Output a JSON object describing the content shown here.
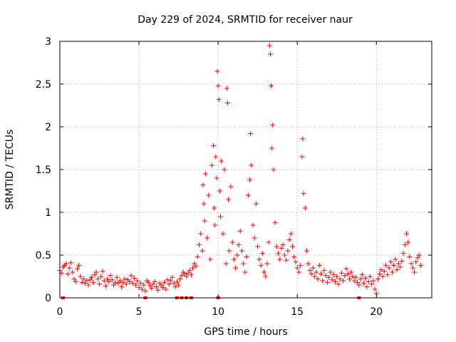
{
  "chart_data": {
    "type": "scatter",
    "title": "Day 229 of 2024, SRMTID for receiver naur",
    "xlabel": "GPS time / hours",
    "ylabel": "SRMTID / TECUs",
    "xlim": [
      0,
      23.5
    ],
    "ylim": [
      0,
      3
    ],
    "xticks": [
      0,
      5,
      10,
      15,
      20
    ],
    "xtick_labels": [
      "0",
      "5",
      "10",
      "15",
      "20"
    ],
    "yticks": [
      0,
      0.5,
      1,
      1.5,
      2,
      2.5,
      3
    ],
    "ytick_labels": [
      "0",
      "0.5",
      "1",
      "1.5",
      "2",
      "2.5",
      "3"
    ],
    "grid": true,
    "marker": "+",
    "series_color": "#ff0000",
    "points": [
      [
        0.0,
        0.32
      ],
      [
        0.1,
        0.29
      ],
      [
        0.2,
        0.36
      ],
      [
        0.3,
        0.38
      ],
      [
        0.4,
        0.4
      ],
      [
        0.5,
        0.28
      ],
      [
        0.6,
        0.35
      ],
      [
        0.7,
        0.41
      ],
      [
        0.8,
        0.3
      ],
      [
        0.9,
        0.22
      ],
      [
        1.0,
        0.19
      ],
      [
        1.1,
        0.34
      ],
      [
        1.2,
        0.38
      ],
      [
        1.3,
        0.25
      ],
      [
        1.4,
        0.18
      ],
      [
        1.5,
        0.22
      ],
      [
        1.6,
        0.17
      ],
      [
        1.7,
        0.2
      ],
      [
        1.8,
        0.15
      ],
      [
        1.9,
        0.21
      ],
      [
        2.0,
        0.24
      ],
      [
        2.1,
        0.18
      ],
      [
        2.2,
        0.27
      ],
      [
        2.3,
        0.3
      ],
      [
        2.4,
        0.22
      ],
      [
        2.5,
        0.16
      ],
      [
        2.6,
        0.25
      ],
      [
        2.7,
        0.31
      ],
      [
        2.8,
        0.2
      ],
      [
        2.9,
        0.14
      ],
      [
        3.0,
        0.22
      ],
      [
        3.1,
        0.19
      ],
      [
        3.2,
        0.26
      ],
      [
        3.3,
        0.21
      ],
      [
        3.4,
        0.15
      ],
      [
        3.5,
        0.18
      ],
      [
        3.6,
        0.24
      ],
      [
        3.7,
        0.17
      ],
      [
        3.8,
        0.2
      ],
      [
        3.9,
        0.13
      ],
      [
        4.0,
        0.18
      ],
      [
        4.1,
        0.22
      ],
      [
        4.2,
        0.16
      ],
      [
        4.3,
        0.21
      ],
      [
        4.4,
        0.19
      ],
      [
        4.5,
        0.26
      ],
      [
        4.6,
        0.17
      ],
      [
        4.7,
        0.23
      ],
      [
        4.8,
        0.15
      ],
      [
        4.9,
        0.2
      ],
      [
        5.0,
        0.12
      ],
      [
        5.1,
        0.17
      ],
      [
        5.2,
        0.1
      ],
      [
        5.3,
        0.15
      ],
      [
        5.4,
        0.08
      ],
      [
        5.5,
        0.2
      ],
      [
        5.6,
        0.18
      ],
      [
        5.7,
        0.14
      ],
      [
        5.8,
        0.11
      ],
      [
        5.9,
        0.16
      ],
      [
        6.0,
        0.19
      ],
      [
        6.1,
        0.13
      ],
      [
        6.2,
        0.09
      ],
      [
        6.3,
        0.17
      ],
      [
        6.4,
        0.15
      ],
      [
        6.5,
        0.12
      ],
      [
        6.6,
        0.18
      ],
      [
        6.7,
        0.1
      ],
      [
        6.8,
        0.21
      ],
      [
        6.9,
        0.16
      ],
      [
        7.0,
        0.2
      ],
      [
        7.1,
        0.24
      ],
      [
        7.2,
        0.17
      ],
      [
        7.3,
        0.13
      ],
      [
        7.4,
        0.19
      ],
      [
        7.5,
        0.15
      ],
      [
        7.6,
        0.22
      ],
      [
        7.7,
        0.26
      ],
      [
        7.8,
        0.3
      ],
      [
        7.9,
        0.28
      ],
      [
        8.0,
        0.25
      ],
      [
        8.1,
        0.29
      ],
      [
        8.2,
        0.32
      ],
      [
        8.3,
        0.27
      ],
      [
        8.4,
        0.35
      ],
      [
        8.5,
        0.4
      ],
      [
        8.6,
        0.37
      ],
      [
        8.7,
        0.48
      ],
      [
        8.8,
        0.62
      ],
      [
        8.9,
        0.75
      ],
      [
        9.0,
        0.55
      ],
      [
        9.05,
        1.32
      ],
      [
        9.1,
        1.1
      ],
      [
        9.15,
        0.9
      ],
      [
        9.2,
        1.45
      ],
      [
        9.3,
        0.7
      ],
      [
        9.4,
        1.2
      ],
      [
        9.5,
        0.45
      ],
      [
        9.6,
        1.55
      ],
      [
        9.7,
        1.78
      ],
      [
        9.75,
        1.05
      ],
      [
        9.8,
        0.85
      ],
      [
        9.85,
        1.65
      ],
      [
        9.9,
        1.4
      ],
      [
        9.95,
        2.65
      ],
      [
        10.0,
        2.48
      ],
      [
        10.05,
        2.32
      ],
      [
        10.1,
        1.25
      ],
      [
        10.15,
        0.95
      ],
      [
        10.2,
        1.6
      ],
      [
        10.3,
        0.75
      ],
      [
        10.4,
        1.5
      ],
      [
        10.5,
        0.4
      ],
      [
        10.55,
        2.45
      ],
      [
        10.6,
        2.28
      ],
      [
        10.65,
        1.15
      ],
      [
        10.7,
        0.55
      ],
      [
        10.8,
        1.3
      ],
      [
        10.9,
        0.65
      ],
      [
        11.0,
        0.45
      ],
      [
        11.1,
        0.35
      ],
      [
        11.2,
        0.5
      ],
      [
        11.3,
        0.62
      ],
      [
        11.4,
        0.78
      ],
      [
        11.5,
        0.55
      ],
      [
        11.6,
        0.4
      ],
      [
        11.7,
        0.3
      ],
      [
        11.8,
        0.48
      ],
      [
        11.9,
        1.2
      ],
      [
        12.0,
        1.38
      ],
      [
        12.05,
        1.92
      ],
      [
        12.1,
        1.55
      ],
      [
        12.2,
        0.85
      ],
      [
        12.3,
        0.7
      ],
      [
        12.4,
        1.1
      ],
      [
        12.5,
        0.6
      ],
      [
        12.6,
        0.45
      ],
      [
        12.7,
        0.38
      ],
      [
        12.8,
        0.52
      ],
      [
        12.9,
        0.3
      ],
      [
        13.0,
        0.25
      ],
      [
        13.1,
        0.4
      ],
      [
        13.2,
        0.65
      ],
      [
        13.25,
        2.95
      ],
      [
        13.3,
        2.85
      ],
      [
        13.35,
        2.48
      ],
      [
        13.4,
        1.75
      ],
      [
        13.45,
        2.02
      ],
      [
        13.5,
        1.5
      ],
      [
        13.6,
        0.88
      ],
      [
        13.7,
        0.6
      ],
      [
        13.8,
        0.52
      ],
      [
        13.9,
        0.45
      ],
      [
        14.0,
        0.58
      ],
      [
        14.1,
        0.62
      ],
      [
        14.2,
        0.5
      ],
      [
        14.3,
        0.44
      ],
      [
        14.4,
        0.55
      ],
      [
        14.5,
        0.68
      ],
      [
        14.6,
        0.75
      ],
      [
        14.7,
        0.6
      ],
      [
        14.8,
        0.48
      ],
      [
        14.9,
        0.42
      ],
      [
        15.0,
        0.35
      ],
      [
        15.1,
        0.3
      ],
      [
        15.2,
        0.38
      ],
      [
        15.3,
        1.65
      ],
      [
        15.35,
        1.86
      ],
      [
        15.4,
        1.22
      ],
      [
        15.5,
        1.05
      ],
      [
        15.6,
        0.55
      ],
      [
        15.7,
        0.4
      ],
      [
        15.8,
        0.32
      ],
      [
        15.9,
        0.28
      ],
      [
        16.0,
        0.35
      ],
      [
        16.1,
        0.25
      ],
      [
        16.2,
        0.3
      ],
      [
        16.3,
        0.22
      ],
      [
        16.4,
        0.38
      ],
      [
        16.5,
        0.28
      ],
      [
        16.6,
        0.2
      ],
      [
        16.7,
        0.32
      ],
      [
        16.8,
        0.26
      ],
      [
        16.9,
        0.18
      ],
      [
        17.0,
        0.24
      ],
      [
        17.1,
        0.3
      ],
      [
        17.2,
        0.21
      ],
      [
        17.3,
        0.27
      ],
      [
        17.4,
        0.19
      ],
      [
        17.5,
        0.25
      ],
      [
        17.6,
        0.16
      ],
      [
        17.7,
        0.22
      ],
      [
        17.8,
        0.29
      ],
      [
        17.9,
        0.2
      ],
      [
        18.0,
        0.26
      ],
      [
        18.1,
        0.34
      ],
      [
        18.2,
        0.28
      ],
      [
        18.3,
        0.22
      ],
      [
        18.4,
        0.3
      ],
      [
        18.5,
        0.25
      ],
      [
        18.6,
        0.2
      ],
      [
        18.7,
        0.24
      ],
      [
        18.8,
        0.18
      ],
      [
        18.9,
        0.15
      ],
      [
        19.0,
        0.22
      ],
      [
        19.1,
        0.27
      ],
      [
        19.2,
        0.17
      ],
      [
        19.3,
        0.23
      ],
      [
        19.4,
        0.13
      ],
      [
        19.5,
        0.19
      ],
      [
        19.6,
        0.25
      ],
      [
        19.7,
        0.16
      ],
      [
        19.8,
        0.2
      ],
      [
        19.9,
        0.1
      ],
      [
        20.0,
        0.05
      ],
      [
        20.1,
        0.22
      ],
      [
        20.2,
        0.28
      ],
      [
        20.3,
        0.33
      ],
      [
        20.4,
        0.25
      ],
      [
        20.5,
        0.31
      ],
      [
        20.6,
        0.38
      ],
      [
        20.7,
        0.27
      ],
      [
        20.8,
        0.35
      ],
      [
        20.9,
        0.42
      ],
      [
        21.0,
        0.3
      ],
      [
        21.1,
        0.38
      ],
      [
        21.2,
        0.45
      ],
      [
        21.3,
        0.33
      ],
      [
        21.4,
        0.4
      ],
      [
        21.5,
        0.36
      ],
      [
        21.6,
        0.43
      ],
      [
        21.7,
        0.52
      ],
      [
        21.8,
        0.62
      ],
      [
        21.9,
        0.75
      ],
      [
        22.0,
        0.65
      ],
      [
        22.1,
        0.48
      ],
      [
        22.2,
        0.4
      ],
      [
        22.3,
        0.35
      ],
      [
        22.4,
        0.3
      ],
      [
        22.5,
        0.42
      ],
      [
        22.6,
        0.47
      ],
      [
        22.7,
        0.5
      ],
      [
        22.8,
        0.38
      ]
    ],
    "zero_markers_x": [
      0.2,
      5.4,
      7.4,
      7.7,
      8.0,
      8.3,
      10.0,
      18.9
    ]
  }
}
